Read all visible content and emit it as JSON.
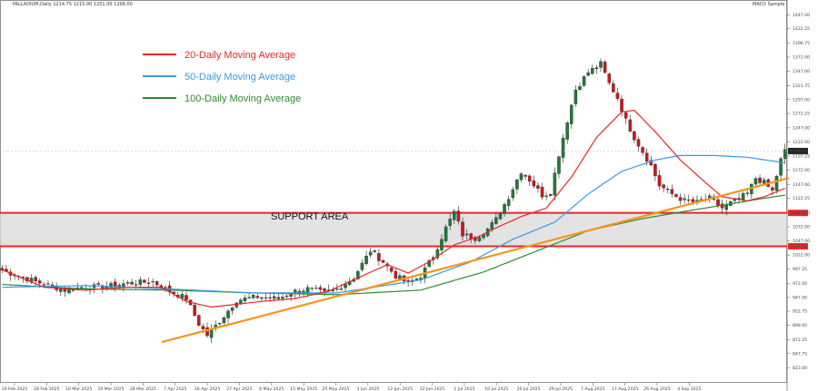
{
  "header": {
    "title": "PALLADIUM,Daily  1214.75 1215.00 1201.00 1206.00",
    "indicator": "MACD Sample"
  },
  "chart_data": {
    "type": "candlestick",
    "title": "",
    "xlabel": "",
    "ylabel": "",
    "ylim": [
      796,
      1473
    ],
    "yticks": [
      "1447.00",
      "1422.25",
      "1396.75",
      "1372.00",
      "1347.00",
      "1321.75",
      "1297.00",
      "1272.25",
      "1247.00",
      "1222.00",
      "1197.25",
      "1172.00",
      "1147.00",
      "1122.25",
      "1097.00",
      "1072.00",
      "1047.00",
      "1022.00",
      "997.25",
      "972.00",
      "947.00",
      "922.75",
      "898.00",
      "872.25",
      "847.75",
      "823.00",
      "798.25"
    ],
    "xticks": [
      "19 Feb 2025",
      "28 Feb 2025",
      "10 Mar 2025",
      "19 Mar 2025",
      "28 Mar 2025",
      "7 Apr 2025",
      "16 Apr 2025",
      "27 Apr 2025",
      "6 May 2025",
      "15 May 2025",
      "25 May 2025",
      "3 Jun 2025",
      "12 Jun 2025",
      "22 Jun 2025",
      "1 Jul 2025",
      "10 Jul 2025",
      "20 Jul 2025",
      "29 Jul 2025",
      "7 Aug 2025",
      "17 Aug 2025",
      "26 Aug 2025",
      "4 Sep 2025"
    ],
    "price_label": "1206.00",
    "support_labels": [
      "1096.50",
      "1037.50"
    ],
    "support_zone": [
      1037.5,
      1096.5
    ],
    "support_label": "SUPPORT AREA",
    "legend": [
      {
        "name": "20-Daily Moving Average",
        "color": "#e8262b"
      },
      {
        "name": "50-Daily Moving Average",
        "color": "#3b9ae1"
      },
      {
        "name": "100-Daily Moving Average",
        "color": "#2e8b2e"
      }
    ],
    "trendline": {
      "color": "#f7941d",
      "from": {
        "x": 0.2,
        "y": 868
      },
      "to": {
        "x": 1.07,
        "y": 1158
      }
    },
    "price_anchors": [
      [
        0,
        995
      ],
      [
        8,
        975
      ],
      [
        15,
        960
      ],
      [
        20,
        966
      ],
      [
        24,
        965
      ],
      [
        30,
        972
      ],
      [
        36,
        975
      ],
      [
        40,
        958
      ],
      [
        44,
        945
      ],
      [
        47,
        900
      ],
      [
        49,
        880
      ],
      [
        52,
        905
      ],
      [
        56,
        942
      ],
      [
        61,
        948
      ],
      [
        66,
        945
      ],
      [
        70,
        958
      ],
      [
        73,
        962
      ],
      [
        77,
        955
      ],
      [
        80,
        962
      ],
      [
        84,
        982
      ],
      [
        88,
        1030
      ],
      [
        91,
        1010
      ],
      [
        94,
        985
      ],
      [
        97,
        972
      ],
      [
        100,
        985
      ],
      [
        103,
        1020
      ],
      [
        106,
        1070
      ],
      [
        108,
        1098
      ],
      [
        110,
        1058
      ],
      [
        113,
        1052
      ],
      [
        116,
        1068
      ],
      [
        118,
        1085
      ],
      [
        121,
        1125
      ],
      [
        124,
        1170
      ],
      [
        126,
        1155
      ],
      [
        129,
        1128
      ],
      [
        131,
        1132
      ],
      [
        133,
        1200
      ],
      [
        135,
        1260
      ],
      [
        137,
        1315
      ],
      [
        140,
        1345
      ],
      [
        143,
        1360
      ],
      [
        145,
        1325
      ],
      [
        147,
        1300
      ],
      [
        149,
        1260
      ],
      [
        151,
        1230
      ],
      [
        153,
        1205
      ],
      [
        155,
        1180
      ],
      [
        157,
        1145
      ],
      [
        160,
        1130
      ],
      [
        163,
        1118
      ],
      [
        166,
        1115
      ],
      [
        169,
        1122
      ],
      [
        172,
        1105
      ],
      [
        175,
        1118
      ],
      [
        178,
        1130
      ],
      [
        180,
        1158
      ],
      [
        182,
        1150
      ],
      [
        184,
        1135
      ],
      [
        186,
        1190
      ],
      [
        187,
        1206
      ]
    ],
    "ma20_anchors": [
      [
        0,
        996
      ],
      [
        10,
        965
      ],
      [
        20,
        960
      ],
      [
        30,
        965
      ],
      [
        38,
        965
      ],
      [
        44,
        940
      ],
      [
        50,
        930
      ],
      [
        56,
        935
      ],
      [
        62,
        940
      ],
      [
        70,
        945
      ],
      [
        78,
        958
      ],
      [
        86,
        985
      ],
      [
        92,
        1005
      ],
      [
        97,
        990
      ],
      [
        102,
        1010
      ],
      [
        108,
        1040
      ],
      [
        114,
        1055
      ],
      [
        118,
        1070
      ],
      [
        124,
        1090
      ],
      [
        130,
        1105
      ],
      [
        136,
        1160
      ],
      [
        142,
        1230
      ],
      [
        148,
        1275
      ],
      [
        151,
        1278
      ],
      [
        156,
        1240
      ],
      [
        162,
        1190
      ],
      [
        168,
        1150
      ],
      [
        172,
        1125
      ],
      [
        178,
        1118
      ],
      [
        182,
        1125
      ],
      [
        187,
        1140
      ]
    ],
    "ma50_anchors": [
      [
        0,
        965
      ],
      [
        20,
        968
      ],
      [
        40,
        962
      ],
      [
        60,
        955
      ],
      [
        80,
        955
      ],
      [
        100,
        978
      ],
      [
        112,
        1010
      ],
      [
        122,
        1050
      ],
      [
        132,
        1080
      ],
      [
        140,
        1130
      ],
      [
        148,
        1170
      ],
      [
        156,
        1190
      ],
      [
        162,
        1198
      ],
      [
        170,
        1198
      ],
      [
        178,
        1195
      ],
      [
        187,
        1185
      ]
    ],
    "ma100_anchors": [
      [
        0,
        970
      ],
      [
        20,
        962
      ],
      [
        40,
        960
      ],
      [
        60,
        955
      ],
      [
        80,
        952
      ],
      [
        100,
        960
      ],
      [
        115,
        992
      ],
      [
        128,
        1030
      ],
      [
        140,
        1065
      ],
      [
        152,
        1085
      ],
      [
        162,
        1098
      ],
      [
        172,
        1110
      ],
      [
        180,
        1120
      ],
      [
        187,
        1128
      ]
    ]
  }
}
